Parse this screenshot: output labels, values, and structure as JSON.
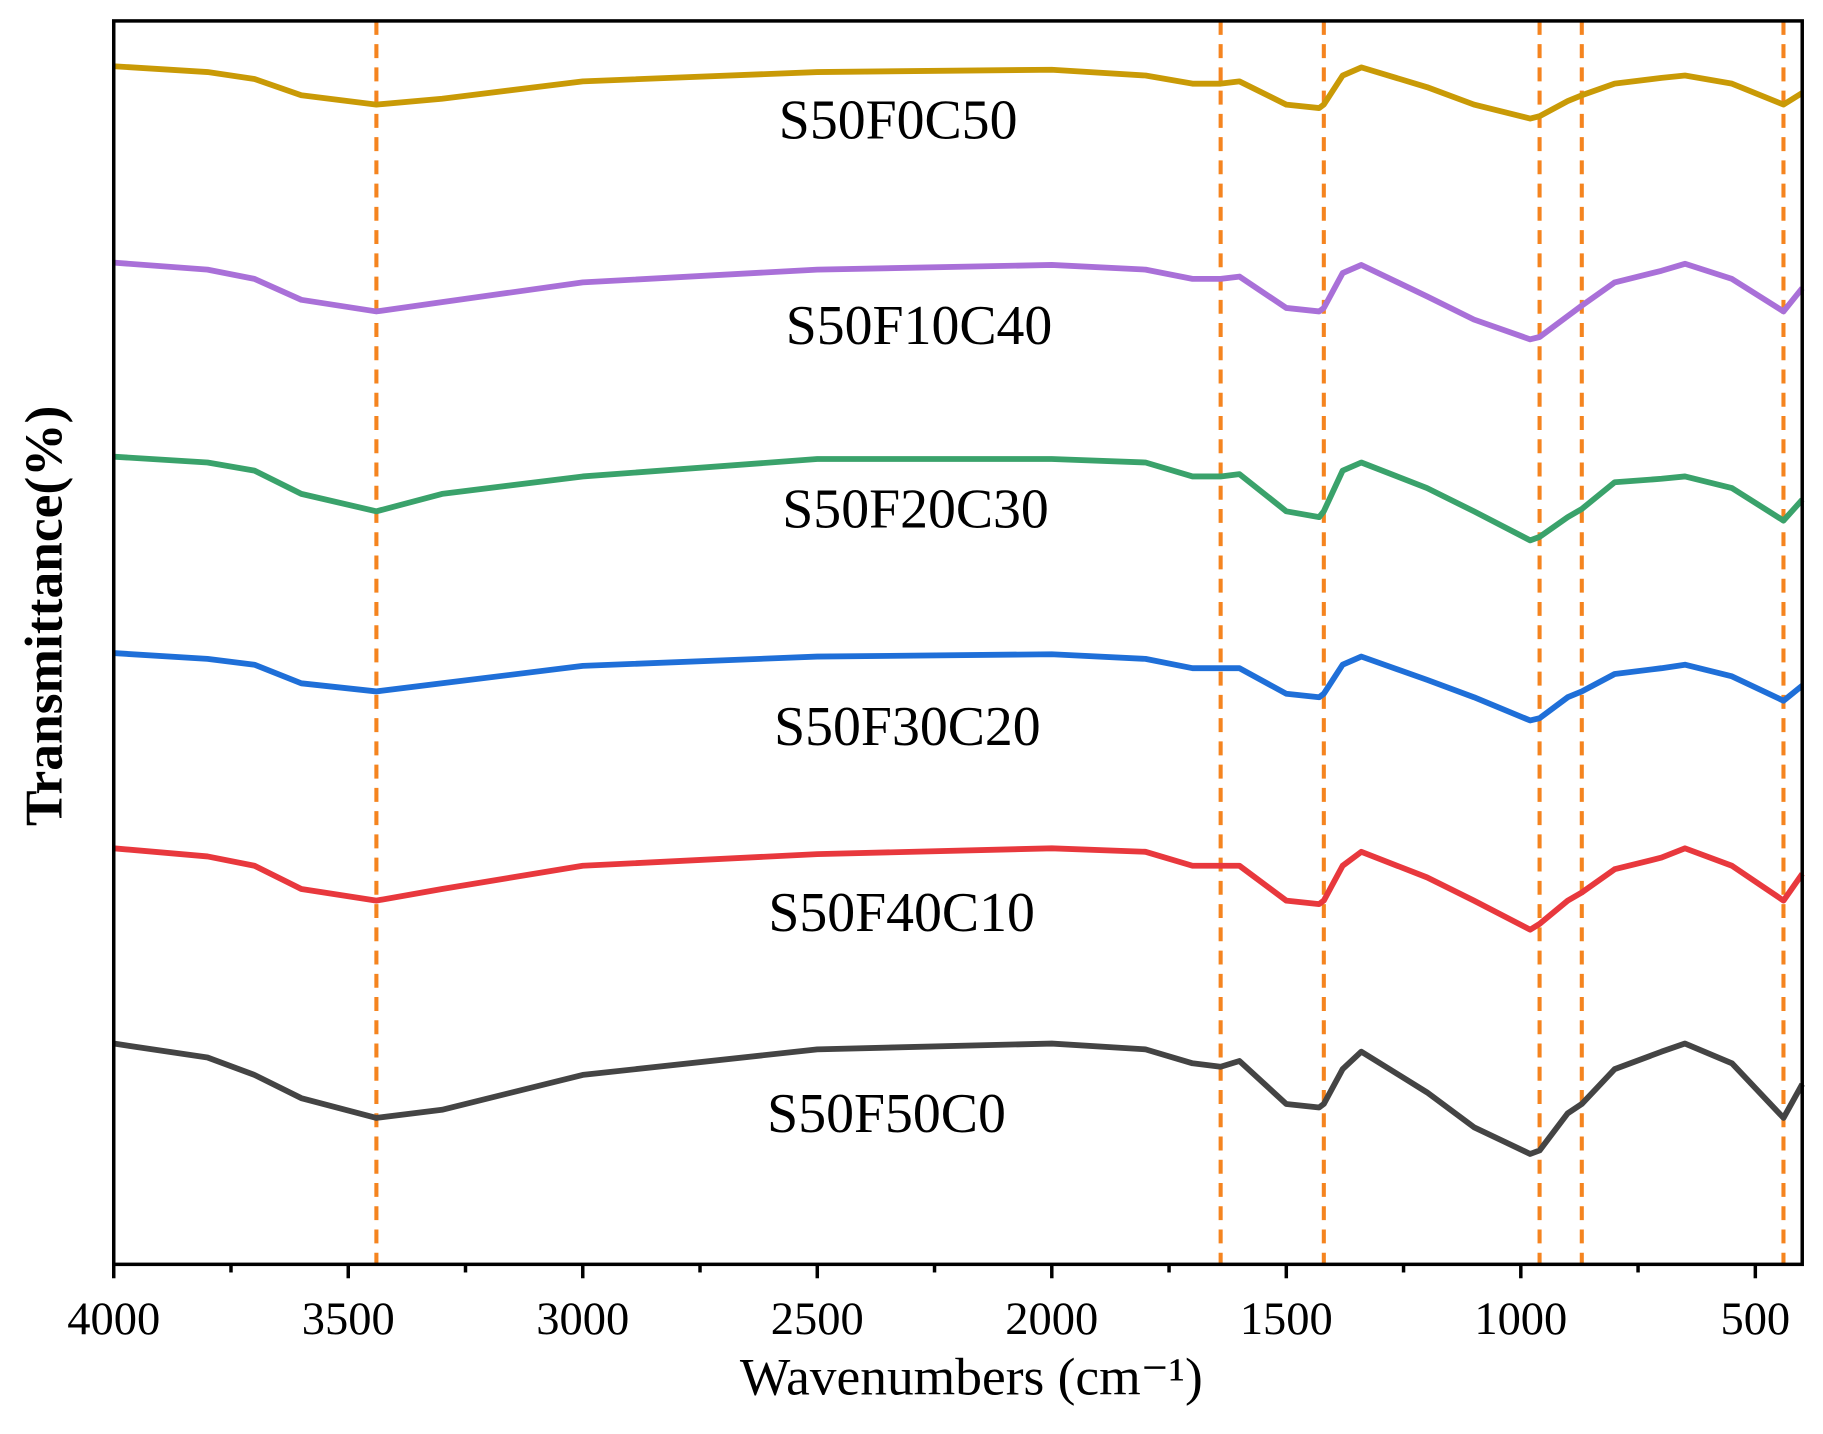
{
  "chart_data": {
    "type": "line",
    "xlabel": "Wavenumbers (cm⁻¹)",
    "ylabel": "Transmittance(%)",
    "xlim": [
      4000,
      400
    ],
    "ylim": [
      0,
      107
    ],
    "xticks": [
      4000,
      3500,
      3000,
      2500,
      2000,
      1500,
      1000,
      500
    ],
    "xminor": [
      3750,
      3250,
      2750,
      2250,
      1750,
      1250,
      750
    ],
    "vlines": [
      3440,
      1640,
      1420,
      960,
      870,
      440
    ],
    "vline_color": "#f5841f",
    "x": [
      4000,
      3800,
      3700,
      3600,
      3440,
      3300,
      3000,
      2500,
      2000,
      1800,
      1700,
      1640,
      1600,
      1500,
      1430,
      1420,
      1380,
      1340,
      1200,
      1100,
      980,
      960,
      900,
      870,
      800,
      700,
      650,
      550,
      440,
      400
    ],
    "series": [
      {
        "name": "S50F0C50",
        "color": "#c99a06",
        "values": [
          103.1,
          102.6,
          102.0,
          100.6,
          99.8,
          100.3,
          101.8,
          102.6,
          102.8,
          102.3,
          101.6,
          101.6,
          101.8,
          99.8,
          99.5,
          99.8,
          102.3,
          103.0,
          101.3,
          99.8,
          98.6,
          98.8,
          100.1,
          100.6,
          101.6,
          102.1,
          102.3,
          101.6,
          99.8,
          100.8
        ]
      },
      {
        "name": "S50F10C40",
        "color": "#a970d8",
        "values": [
          86.2,
          85.6,
          84.8,
          83.0,
          82.0,
          82.8,
          84.5,
          85.6,
          86.0,
          85.6,
          84.8,
          84.8,
          85.0,
          82.3,
          82.0,
          82.3,
          85.3,
          86.0,
          83.3,
          81.3,
          79.6,
          79.8,
          81.6,
          82.5,
          84.5,
          85.5,
          86.1,
          84.8,
          82.0,
          84.0
        ]
      },
      {
        "name": "S50F20C30",
        "color": "#3aa26b",
        "values": [
          69.5,
          69.0,
          68.3,
          66.3,
          64.8,
          66.3,
          67.8,
          69.3,
          69.3,
          69.0,
          67.8,
          67.8,
          68.0,
          64.8,
          64.3,
          64.8,
          68.3,
          69.0,
          66.8,
          64.8,
          62.3,
          62.6,
          64.3,
          65.0,
          67.3,
          67.6,
          67.8,
          66.8,
          64.0,
          65.8
        ]
      },
      {
        "name": "S50F30C20",
        "color": "#1f6fd8",
        "values": [
          52.6,
          52.1,
          51.6,
          50.0,
          49.3,
          50.0,
          51.5,
          52.3,
          52.5,
          52.1,
          51.3,
          51.3,
          51.3,
          49.1,
          48.8,
          49.1,
          51.6,
          52.3,
          50.3,
          48.8,
          46.8,
          47.0,
          48.8,
          49.3,
          50.8,
          51.3,
          51.6,
          50.6,
          48.5,
          49.8
        ]
      },
      {
        "name": "S50F40C10",
        "color": "#e8383d",
        "values": [
          35.8,
          35.1,
          34.3,
          32.3,
          31.3,
          32.3,
          34.3,
          35.3,
          35.8,
          35.5,
          34.3,
          34.3,
          34.3,
          31.3,
          31.0,
          31.3,
          34.3,
          35.5,
          33.3,
          31.3,
          28.8,
          29.3,
          31.3,
          32.0,
          34.0,
          35.0,
          35.8,
          34.3,
          31.3,
          33.6
        ]
      },
      {
        "name": "S50F50C0",
        "color": "#444444",
        "values": [
          19.0,
          17.8,
          16.3,
          14.3,
          12.6,
          13.3,
          16.3,
          18.5,
          19.0,
          18.5,
          17.3,
          17.0,
          17.5,
          13.8,
          13.5,
          13.8,
          16.8,
          18.3,
          14.8,
          11.8,
          9.5,
          9.8,
          13.0,
          13.8,
          16.8,
          18.3,
          19.0,
          17.3,
          12.6,
          15.5
        ]
      }
    ]
  }
}
